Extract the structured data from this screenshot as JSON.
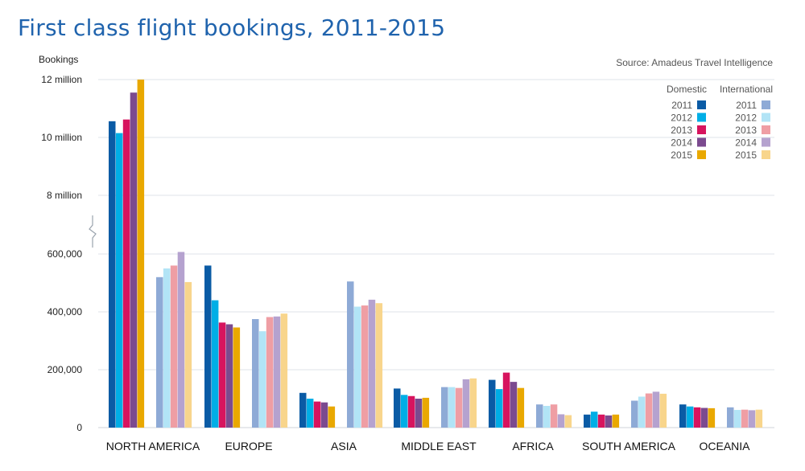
{
  "chart_data": {
    "type": "bar",
    "title": "First class flight bookings, 2011-2015",
    "ylabel": "Bookings",
    "source": "Source: Amadeus Travel Intelligence",
    "y_axis_break": true,
    "y_ticks": [
      {
        "value": 0,
        "label": "0"
      },
      {
        "value": 200000,
        "label": "200,000"
      },
      {
        "value": 400000,
        "label": "400,000"
      },
      {
        "value": 600000,
        "label": "600,000"
      },
      {
        "value": 8000000,
        "label": "8 million"
      },
      {
        "value": 10000000,
        "label": "10 million"
      },
      {
        "value": 12000000,
        "label": "12 million"
      }
    ],
    "categories": [
      "NORTH AMERICA",
      "EUROPE",
      "ASIA",
      "MIDDLE EAST",
      "AFRICA",
      "SOUTH AMERICA",
      "OCEANIA"
    ],
    "legend": {
      "position": "top-right",
      "groups": [
        {
          "name": "Domestic",
          "years": [
            "2011",
            "2012",
            "2013",
            "2014",
            "2015"
          ],
          "colors": [
            "#0a5ba5",
            "#00aee6",
            "#d7145e",
            "#7b4a8f",
            "#e9a800"
          ]
        },
        {
          "name": "International",
          "years": [
            "2011",
            "2012",
            "2013",
            "2014",
            "2015"
          ],
          "colors": [
            "#8eaad6",
            "#b2e4f6",
            "#ef9ea4",
            "#b5a2cf",
            "#f8d58c"
          ]
        }
      ]
    },
    "series": [
      {
        "group": "Domestic",
        "year": "2011",
        "values": [
          10560000,
          560000,
          120000,
          135000,
          165000,
          45000,
          80000
        ]
      },
      {
        "group": "Domestic",
        "year": "2012",
        "values": [
          10150000,
          440000,
          100000,
          113000,
          133000,
          55000,
          73000
        ]
      },
      {
        "group": "Domestic",
        "year": "2013",
        "values": [
          10620000,
          363000,
          90000,
          109000,
          190000,
          45000,
          70000
        ]
      },
      {
        "group": "Domestic",
        "year": "2014",
        "values": [
          11550000,
          357000,
          87000,
          100000,
          158000,
          42000,
          68000
        ]
      },
      {
        "group": "Domestic",
        "year": "2015",
        "values": [
          12000000,
          346000,
          73000,
          103000,
          137000,
          45000,
          67000
        ]
      },
      {
        "group": "International",
        "year": "2011",
        "values": [
          520000,
          375000,
          505000,
          140000,
          80000,
          93000,
          70000
        ]
      },
      {
        "group": "International",
        "year": "2012",
        "values": [
          550000,
          333000,
          418000,
          140000,
          75000,
          107000,
          61000
        ]
      },
      {
        "group": "International",
        "year": "2013",
        "values": [
          560000,
          382000,
          422000,
          137000,
          80000,
          118000,
          62000
        ]
      },
      {
        "group": "International",
        "year": "2014",
        "values": [
          607000,
          384000,
          442000,
          167000,
          46000,
          124000,
          60000
        ]
      },
      {
        "group": "International",
        "year": "2015",
        "values": [
          503000,
          394000,
          430000,
          170000,
          43000,
          117000,
          62000
        ]
      }
    ]
  }
}
